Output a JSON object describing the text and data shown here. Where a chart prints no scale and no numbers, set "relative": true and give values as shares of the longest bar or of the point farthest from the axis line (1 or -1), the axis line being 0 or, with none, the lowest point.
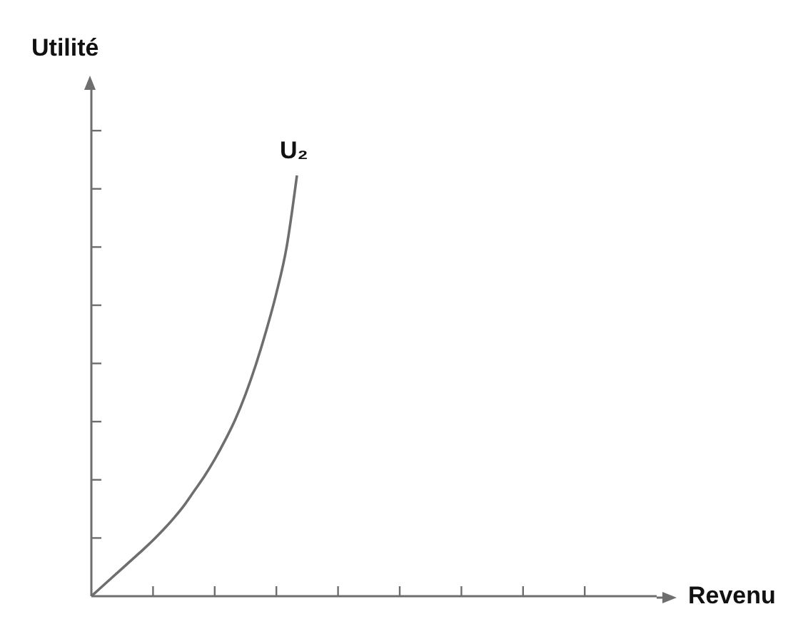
{
  "chart_data": {
    "type": "line",
    "xlabel": "Revenu",
    "ylabel": "Utilité",
    "relative": true,
    "tick_labels": false,
    "marker": "none",
    "categories": [
      null,
      null,
      null,
      null,
      null,
      null,
      null,
      null,
      null,
      null,
      null,
      null,
      null,
      null,
      null,
      null,
      null,
      null,
      null,
      null,
      null,
      null,
      null,
      null,
      null,
      null,
      null,
      null,
      null,
      null,
      null,
      null,
      null,
      null,
      null,
      null,
      null,
      null,
      null,
      null,
      null,
      null,
      null,
      null,
      null,
      null,
      null,
      null,
      null,
      null,
      null,
      null,
      null,
      null,
      null,
      null
    ],
    "series": [
      {
        "name": "U₂",
        "color": "#6e6e6e",
        "values": [
          0,
          0.022,
          0.044,
          0.066,
          0.088,
          0.11,
          0.133,
          0.158,
          0.185,
          0.215,
          0.25,
          0.285,
          0.325,
          0.37,
          0.42,
          0.48,
          0.55,
          0.63,
          0.72,
          0.83,
          1.0,
          null,
          null,
          null,
          null,
          null,
          null,
          null,
          null,
          null,
          null,
          null,
          null,
          null,
          null,
          null,
          null,
          null,
          null,
          null,
          null,
          null,
          null,
          null,
          null,
          null,
          null,
          null,
          null,
          null,
          null,
          null,
          null,
          null,
          null,
          null
        ]
      }
    ]
  }
}
